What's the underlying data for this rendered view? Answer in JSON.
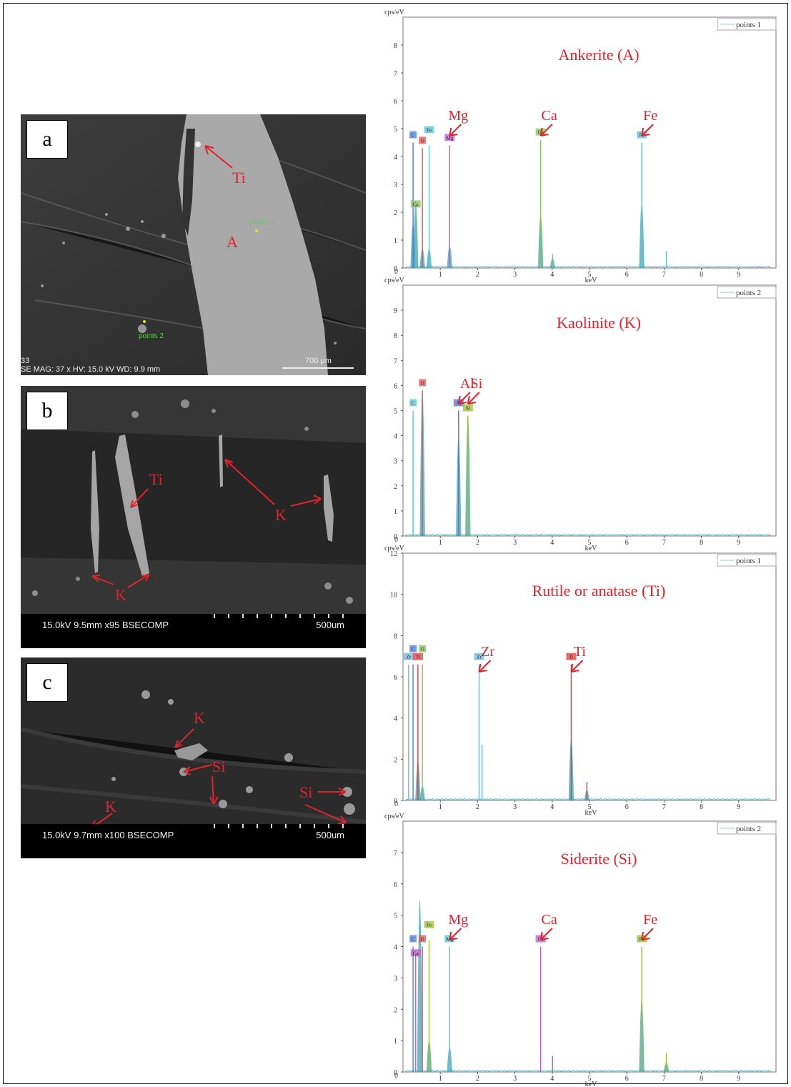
{
  "colors": {
    "annotation": "#e0232d",
    "C": "#4a7fe0",
    "O": "#e35454",
    "Ca": "#88c25a",
    "Fe": "#58c6d8",
    "Mg": "#c05bc6",
    "Al": "#5b6fd6",
    "Si": "#9ac22f",
    "Ti": "#e63a3a",
    "Zr": "#6fb8d9",
    "bg_spectrum": "#3ea3b8"
  },
  "panels": [
    {
      "letter": "a",
      "labels": {
        "ti": "Ti",
        "a": "A",
        "point1": "points 1",
        "point2": "points 2"
      },
      "sem_info": "SE  MAG: 37 x  HV: 15.0 kV  WD: 9.9 mm",
      "scale": "700 µm",
      "corner": "33"
    },
    {
      "letter": "b",
      "labels": {
        "ti": "Ti",
        "k1": "K",
        "k2": "K"
      },
      "bar_left": "15.0kV 9.5mm x95 BSECOMP",
      "bar_right": "500um"
    },
    {
      "letter": "c",
      "labels": {
        "k1": "K",
        "k2": "K",
        "si1": "Si",
        "si2": "Si"
      },
      "bar_left": "15.0kV 9.7mm x100 BSECOMP",
      "bar_right": "500um"
    }
  ],
  "chart_data": [
    {
      "type": "line",
      "title": "Ankerite (A)",
      "ylabel": "cps/eV",
      "xlabel": "keV",
      "legend": "points 1",
      "legend_position": "top-right",
      "xlim": [
        0,
        10
      ],
      "ylim": [
        0,
        9
      ],
      "yticks": [
        0,
        1,
        2,
        3,
        4,
        5,
        6,
        7,
        8
      ],
      "xticks": [
        1,
        2,
        3,
        4,
        5,
        6,
        7,
        8,
        9
      ],
      "peak_tags": [
        {
          "label": "C",
          "x": 0.27,
          "color": "C",
          "row": 0
        },
        {
          "label": "O",
          "x": 0.52,
          "color": "O",
          "row": 0
        },
        {
          "label": "Fe",
          "x": 0.7,
          "color": "Fe",
          "row": -1
        },
        {
          "label": "Ca",
          "x": 0.34,
          "color": "Ca",
          "row": 1
        },
        {
          "label": "Mg",
          "x": 1.25,
          "color": "Mg",
          "row": 0
        },
        {
          "label": "Ca",
          "x": 3.69,
          "color": "Ca",
          "row": 0
        },
        {
          "label": "Fe",
          "x": 6.4,
          "color": "Fe",
          "row": 0
        }
      ],
      "arrows": [
        {
          "label": "Mg",
          "x": 1.25
        },
        {
          "label": "Ca",
          "x": 3.69
        },
        {
          "label": "Fe",
          "x": 6.4
        }
      ],
      "series": [
        {
          "name": "C",
          "color": "C",
          "points": [
            [
              0.27,
              4.5
            ]
          ]
        },
        {
          "name": "O",
          "color": "O",
          "points": [
            [
              0.52,
              4.3
            ]
          ]
        },
        {
          "name": "Ca",
          "color": "Ca",
          "points": [
            [
              0.34,
              2.3
            ],
            [
              3.69,
              4.6
            ],
            [
              4.01,
              0.5
            ]
          ]
        },
        {
          "name": "Fe",
          "color": "Fe",
          "points": [
            [
              0.7,
              4.4
            ],
            [
              6.4,
              4.5
            ],
            [
              7.06,
              0.6
            ]
          ]
        },
        {
          "name": "Mg",
          "color": "Mg",
          "points": [
            [
              1.25,
              4.4
            ]
          ]
        }
      ],
      "bumps": [
        [
          0.27,
          1.6
        ],
        [
          0.34,
          2.3
        ],
        [
          0.52,
          0.7
        ],
        [
          0.7,
          0.7
        ],
        [
          1.25,
          0.8
        ],
        [
          3.69,
          1.9
        ],
        [
          4.01,
          0.35
        ],
        [
          6.4,
          2.3
        ]
      ]
    },
    {
      "type": "line",
      "title": "Kaolinite (K)",
      "ylabel": "cps/eV",
      "xlabel": "keV",
      "legend": "points 2",
      "legend_position": "top-right",
      "xlim": [
        0,
        10
      ],
      "ylim": [
        0,
        10
      ],
      "yticks": [
        0,
        1,
        2,
        3,
        4,
        5,
        6,
        7,
        8,
        9
      ],
      "xticks": [
        1,
        2,
        3,
        4,
        5,
        6,
        7,
        8,
        9
      ],
      "peak_tags": [
        {
          "label": "C",
          "x": 0.27,
          "color": "Fe",
          "row": 0
        },
        {
          "label": "O",
          "x": 0.52,
          "color": "O",
          "row": 0
        },
        {
          "label": "Al",
          "x": 1.49,
          "color": "Al",
          "row": 0
        },
        {
          "label": "Si",
          "x": 1.74,
          "color": "Si",
          "row": 0
        }
      ],
      "arrows": [
        {
          "label": "Al",
          "x": 1.49
        },
        {
          "label": "Si",
          "x": 1.74
        }
      ],
      "series": [
        {
          "name": "C",
          "color": "Fe",
          "points": [
            [
              0.27,
              5.0
            ]
          ]
        },
        {
          "name": "O",
          "color": "O",
          "points": [
            [
              0.52,
              5.8
            ]
          ]
        },
        {
          "name": "Al",
          "color": "Al",
          "points": [
            [
              1.49,
              5.0
            ]
          ]
        },
        {
          "name": "Si",
          "color": "Si",
          "points": [
            [
              1.74,
              4.8
            ]
          ]
        }
      ],
      "bumps": [
        [
          0.52,
          5.8
        ],
        [
          1.49,
          4.0
        ],
        [
          1.74,
          4.8
        ]
      ]
    },
    {
      "type": "line",
      "title": "Rutile or anatase (Ti)",
      "ylabel": "cps/eV",
      "xlabel": "keV",
      "legend": "points 1",
      "legend_position": "top-right",
      "xlim": [
        0,
        10
      ],
      "ylim": [
        0,
        12
      ],
      "yticks": [
        0,
        2,
        4,
        6,
        8,
        10,
        12
      ],
      "xticks": [
        1,
        2,
        3,
        4,
        5,
        6,
        7,
        8,
        9
      ],
      "peak_tags": [
        {
          "label": "C",
          "x": 0.27,
          "color": "C",
          "row": -1
        },
        {
          "label": "O",
          "x": 0.52,
          "color": "Ca",
          "row": -1
        },
        {
          "label": "Zr",
          "x": 0.15,
          "color": "Zr",
          "row": 0
        },
        {
          "label": "Ti",
          "x": 0.4,
          "color": "Ti",
          "row": 0
        },
        {
          "label": "Zr",
          "x": 2.04,
          "color": "Zr",
          "row": 0
        },
        {
          "label": "Ti",
          "x": 4.51,
          "color": "Ti",
          "row": 0
        }
      ],
      "arrows": [
        {
          "label": "Zr",
          "x": 2.04
        },
        {
          "label": "Ti",
          "x": 4.51
        }
      ],
      "series": [
        {
          "name": "C",
          "color": "C",
          "points": [
            [
              0.27,
              6.6
            ]
          ]
        },
        {
          "name": "O",
          "color": "Ca",
          "points": [
            [
              0.52,
              6.6
            ]
          ]
        },
        {
          "name": "Zr",
          "color": "Zr",
          "points": [
            [
              0.15,
              6.6
            ],
            [
              2.04,
              6.6
            ],
            [
              2.12,
              2.7
            ]
          ]
        },
        {
          "name": "Ti",
          "color": "Ti",
          "points": [
            [
              0.4,
              6.6
            ],
            [
              4.51,
              6.6
            ],
            [
              4.93,
              0.9
            ]
          ]
        }
      ],
      "bumps": [
        [
          0.4,
          1.9
        ],
        [
          0.52,
          0.7
        ],
        [
          4.51,
          3.0
        ],
        [
          4.93,
          0.5
        ]
      ]
    },
    {
      "type": "line",
      "title": "Siderite (Si)",
      "ylabel": "cps/eV",
      "xlabel": "keV",
      "legend": "points 2",
      "legend_position": "top-right",
      "xlim": [
        0,
        10
      ],
      "ylim": [
        0,
        8
      ],
      "yticks": [
        0,
        1,
        2,
        3,
        4,
        5,
        6,
        7
      ],
      "xticks": [
        1,
        2,
        3,
        4,
        5,
        6,
        7,
        8,
        9
      ],
      "peak_tags": [
        {
          "label": "C",
          "x": 0.27,
          "color": "C",
          "row": 0
        },
        {
          "label": "O",
          "x": 0.52,
          "color": "O",
          "row": 0
        },
        {
          "label": "Fe",
          "x": 0.7,
          "color": "Si",
          "row": -1
        },
        {
          "label": "Ca",
          "x": 0.34,
          "color": "Mg",
          "row": 1
        },
        {
          "label": "Mg",
          "x": 1.25,
          "color": "Fe",
          "row": 0
        },
        {
          "label": "Ca",
          "x": 3.69,
          "color": "Mg",
          "row": 0
        },
        {
          "label": "Fe",
          "x": 6.4,
          "color": "Si",
          "row": 0
        }
      ],
      "arrows": [
        {
          "label": "Mg",
          "x": 1.25
        },
        {
          "label": "Ca",
          "x": 3.69
        },
        {
          "label": "Fe",
          "x": 6.4
        }
      ],
      "series": [
        {
          "name": "C",
          "color": "C",
          "points": [
            [
              0.27,
              4.0
            ]
          ]
        },
        {
          "name": "O",
          "color": "O",
          "points": [
            [
              0.52,
              4.0
            ]
          ]
        },
        {
          "name": "Ca",
          "color": "Mg",
          "points": [
            [
              0.34,
              3.8
            ],
            [
              3.69,
              4.0
            ],
            [
              4.01,
              0.5
            ]
          ]
        },
        {
          "name": "Fe",
          "color": "Si",
          "points": [
            [
              0.7,
              4.2
            ],
            [
              6.4,
              4.0
            ],
            [
              7.06,
              0.6
            ]
          ]
        },
        {
          "name": "Mg",
          "color": "Fe",
          "points": [
            [
              1.25,
              4.0
            ]
          ]
        }
      ],
      "bumps": [
        [
          0.45,
          5.5
        ],
        [
          0.7,
          1.0
        ],
        [
          1.25,
          0.8
        ],
        [
          6.4,
          2.3
        ],
        [
          7.06,
          0.3
        ]
      ]
    }
  ]
}
